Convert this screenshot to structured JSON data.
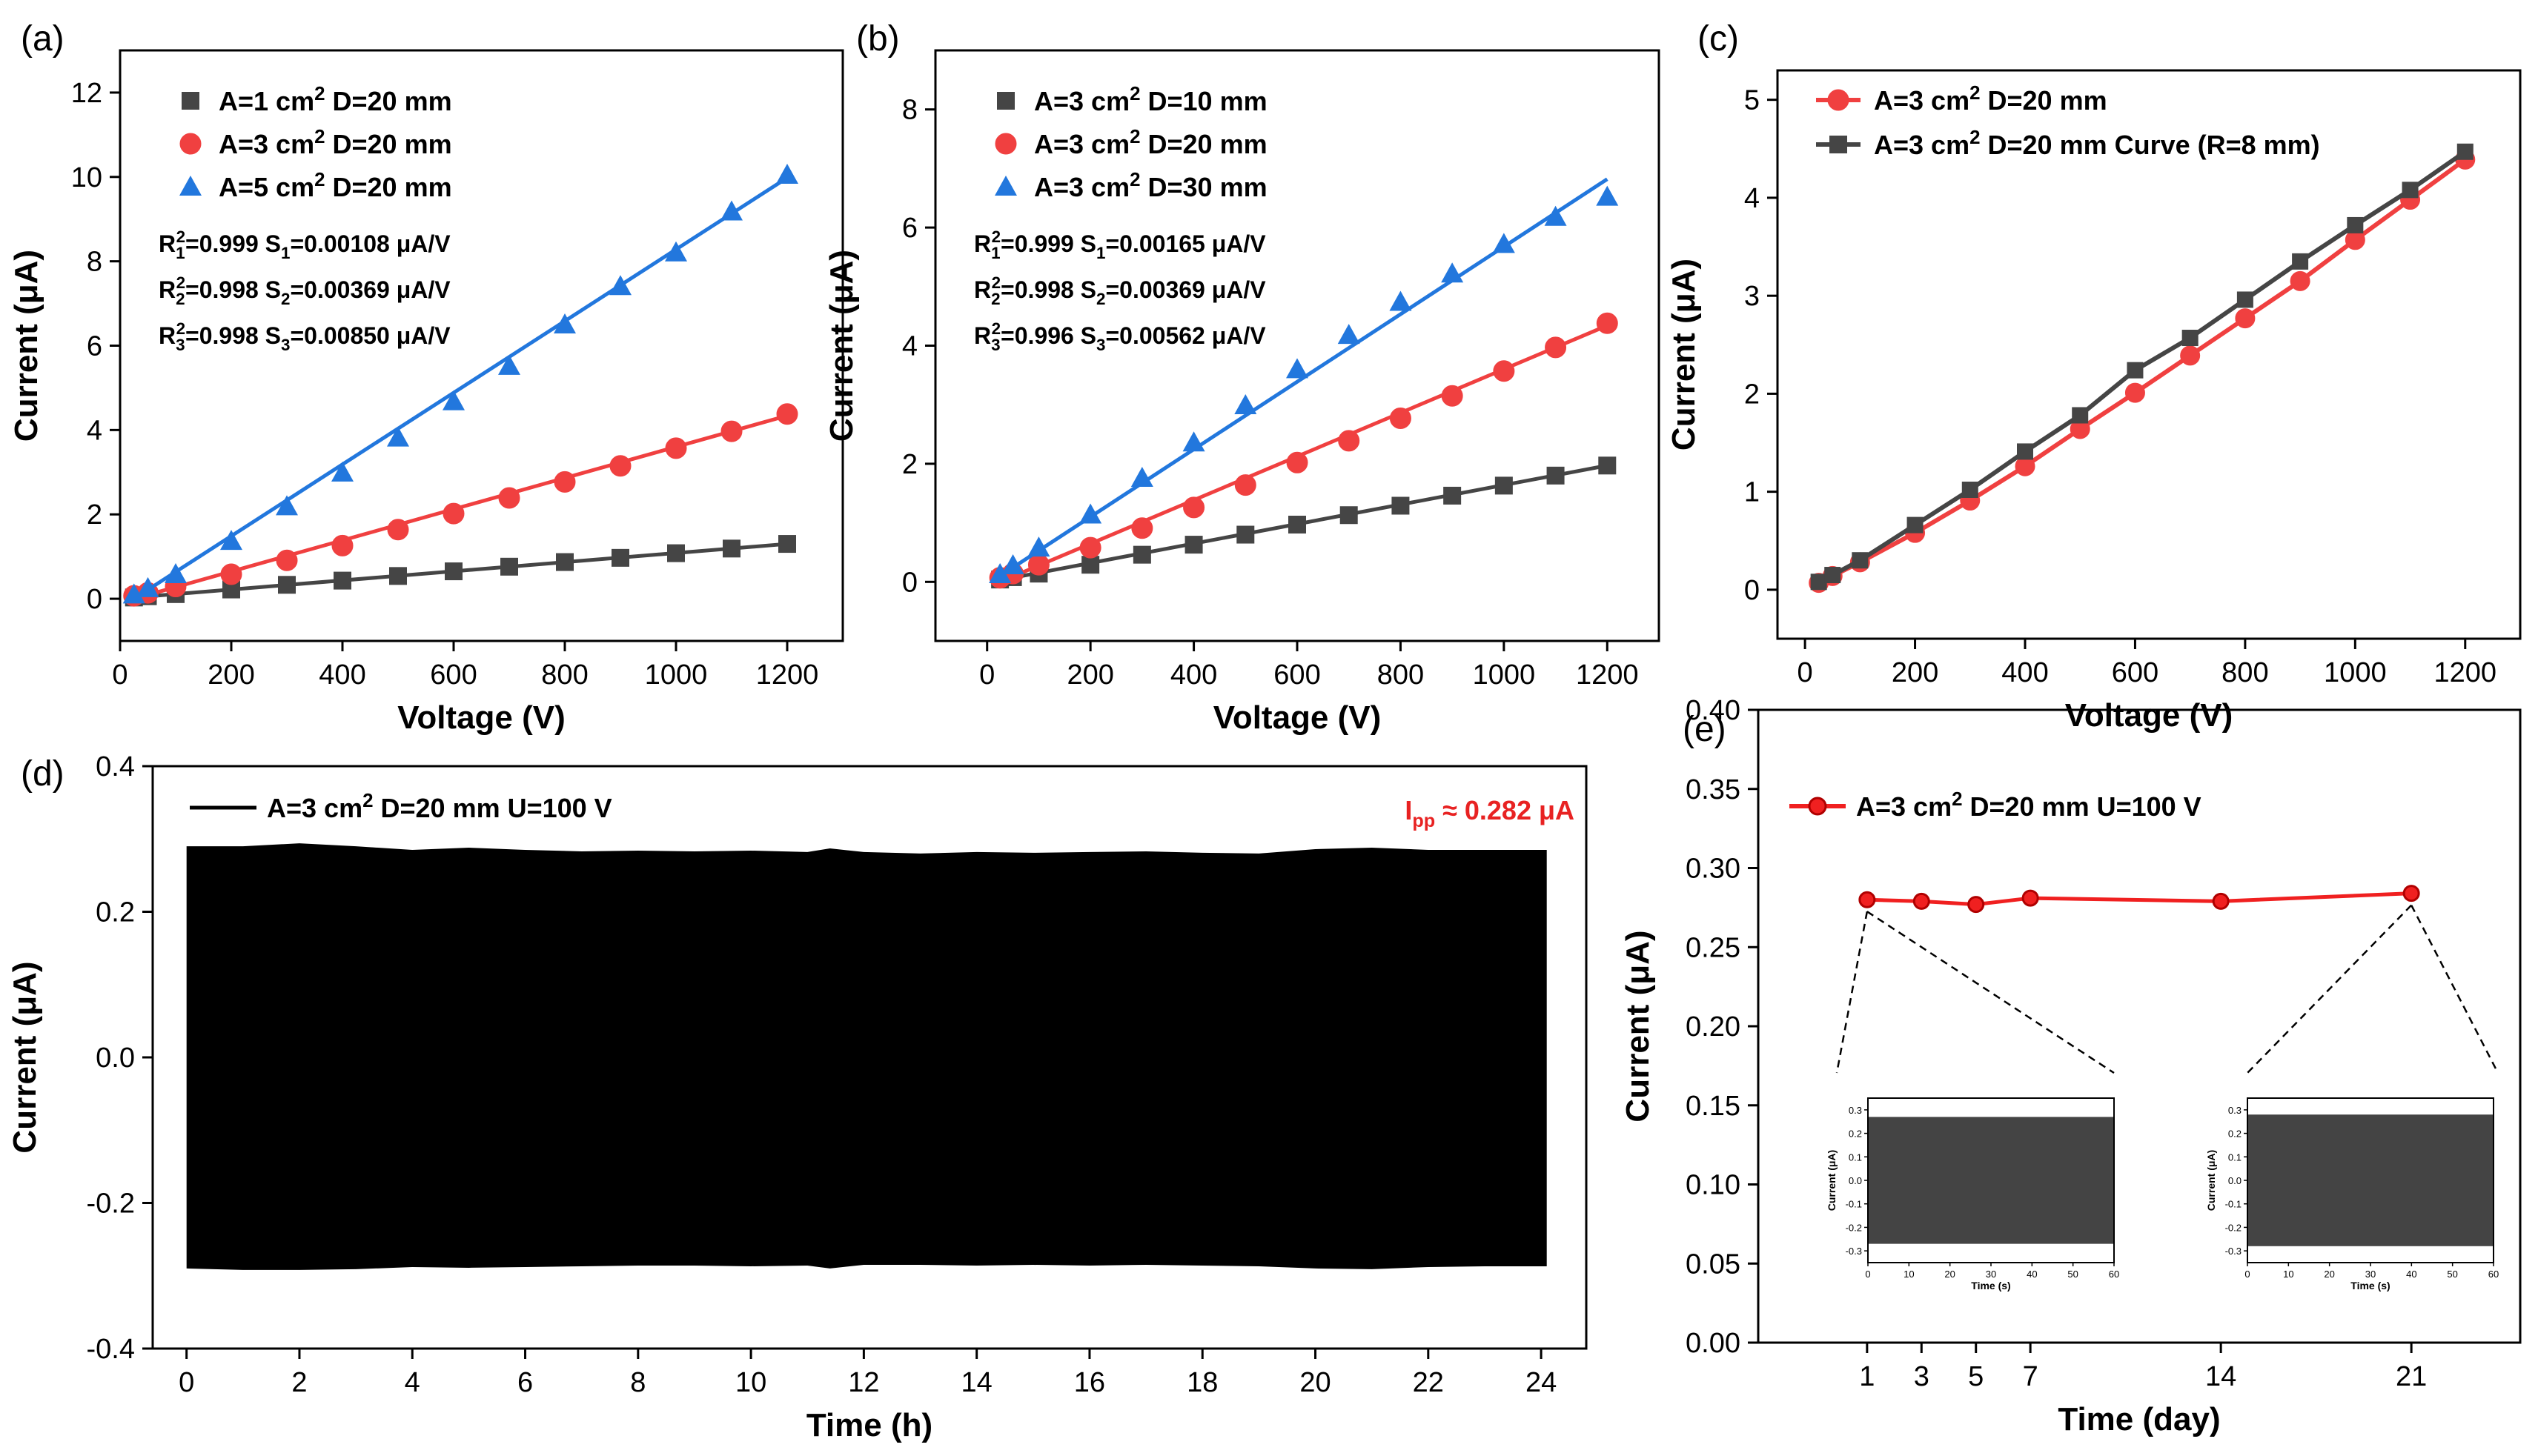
{
  "chart_data": [
    {
      "panel": "(a)",
      "type": "scatter",
      "xlabel": "Voltage (V)",
      "ylabel": "Current (μA)",
      "xlim": [
        0,
        1300
      ],
      "ylim": [
        -1,
        13
      ],
      "xticks": [
        0,
        200,
        400,
        600,
        800,
        1000,
        1200
      ],
      "yticks": [
        0,
        2,
        4,
        6,
        8,
        10,
        12
      ],
      "legend_position": "top-left",
      "series": [
        {
          "name": "A=1 cm² D=20 mm",
          "marker": "square",
          "color": "#454545",
          "x": [
            25,
            50,
            100,
            200,
            300,
            400,
            500,
            600,
            700,
            800,
            900,
            1000,
            1100,
            1200
          ],
          "y": [
            0.03,
            0.06,
            0.11,
            0.22,
            0.33,
            0.43,
            0.54,
            0.65,
            0.76,
            0.87,
            0.97,
            1.08,
            1.19,
            1.3
          ],
          "fit": [
            [
              25,
              0.03
            ],
            [
              1200,
              1.3
            ]
          ]
        },
        {
          "name": "A=3 cm² D=20 mm",
          "marker": "circle",
          "color": "#f04040",
          "x": [
            25,
            50,
            100,
            200,
            300,
            400,
            500,
            600,
            700,
            800,
            900,
            1000,
            1100,
            1200
          ],
          "y": [
            0.07,
            0.14,
            0.29,
            0.58,
            0.91,
            1.26,
            1.64,
            2.02,
            2.39,
            2.77,
            3.15,
            3.57,
            3.97,
            4.38
          ],
          "fit": [
            [
              25,
              0.0
            ],
            [
              1200,
              4.34
            ]
          ]
        },
        {
          "name": "A=5 cm² D=20 mm",
          "marker": "triangle",
          "color": "#2277dd",
          "x": [
            25,
            50,
            100,
            200,
            300,
            400,
            500,
            600,
            700,
            800,
            900,
            1000,
            1100,
            1200
          ],
          "y": [
            0.1,
            0.25,
            0.58,
            1.37,
            2.19,
            2.99,
            3.82,
            4.68,
            5.52,
            6.5,
            7.41,
            8.21,
            9.18,
            10.05
          ],
          "fit": [
            [
              25,
              0.0
            ],
            [
              1200,
              9.98
            ]
          ]
        }
      ],
      "annotations": [
        {
          "base": "R",
          "sub": "1",
          "sup": "2",
          "text": "=0.999  ",
          "base2": "S",
          "sub2": "1",
          "text2": "=0.00108 μA/V"
        },
        {
          "base": "R",
          "sub": "2",
          "sup": "2",
          "text": "=0.998  ",
          "base2": "S",
          "sub2": "2",
          "text2": "=0.00369 μA/V"
        },
        {
          "base": "R",
          "sub": "3",
          "sup": "2",
          "text": "=0.998  ",
          "base2": "S",
          "sub2": "3",
          "text2": "=0.00850 μA/V"
        }
      ]
    },
    {
      "panel": "(b)",
      "type": "scatter",
      "xlabel": "Voltage (V)",
      "ylabel": "Current (μA)",
      "xlim": [
        -100,
        1300
      ],
      "ylim": [
        -1,
        9
      ],
      "xticks": [
        0,
        200,
        400,
        600,
        800,
        1000,
        1200
      ],
      "yticks": [
        0,
        2,
        4,
        6,
        8
      ],
      "legend_position": "top-left",
      "series": [
        {
          "name": "A=3 cm² D=10 mm",
          "marker": "square",
          "color": "#454545",
          "x": [
            25,
            50,
            100,
            200,
            300,
            400,
            500,
            600,
            700,
            800,
            900,
            1000,
            1100,
            1200
          ],
          "y": [
            0.04,
            0.08,
            0.14,
            0.29,
            0.46,
            0.63,
            0.8,
            0.97,
            1.13,
            1.29,
            1.46,
            1.63,
            1.8,
            1.97
          ],
          "fit": [
            [
              25,
              0.03
            ],
            [
              1200,
              1.97
            ]
          ]
        },
        {
          "name": "A=3 cm² D=20 mm",
          "marker": "circle",
          "color": "#f04040",
          "x": [
            25,
            50,
            100,
            200,
            300,
            400,
            500,
            600,
            700,
            800,
            900,
            1000,
            1100,
            1200
          ],
          "y": [
            0.07,
            0.14,
            0.29,
            0.58,
            0.91,
            1.26,
            1.64,
            2.02,
            2.39,
            2.77,
            3.15,
            3.57,
            3.97,
            4.38
          ],
          "fit": [
            [
              25,
              0.0
            ],
            [
              1200,
              4.34
            ]
          ]
        },
        {
          "name": "A=3 cm² D=30 mm",
          "marker": "triangle",
          "color": "#2277dd",
          "x": [
            25,
            50,
            100,
            200,
            300,
            400,
            500,
            600,
            700,
            800,
            900,
            1000,
            1100,
            1200
          ],
          "y": [
            0.13,
            0.28,
            0.58,
            1.14,
            1.76,
            2.36,
            2.99,
            3.6,
            4.18,
            4.74,
            5.22,
            5.72,
            6.18,
            6.52
          ],
          "fit": [
            [
              25,
              0.1
            ],
            [
              1200,
              6.82
            ]
          ]
        }
      ],
      "annotations": [
        {
          "base": "R",
          "sub": "1",
          "sup": "2",
          "text": "=0.999  ",
          "base2": "S",
          "sub2": "1",
          "text2": "=0.00165 μA/V"
        },
        {
          "base": "R",
          "sub": "2",
          "sup": "2",
          "text": "=0.998  ",
          "base2": "S",
          "sub2": "2",
          "text2": "=0.00369 μA/V"
        },
        {
          "base": "R",
          "sub": "3",
          "sup": "2",
          "text": "=0.996  ",
          "base2": "S",
          "sub2": "3",
          "text2": "=0.00562 μA/V"
        }
      ]
    },
    {
      "panel": "(c)",
      "type": "line",
      "xlabel": "Voltage (V)",
      "ylabel": "Current (μA)",
      "xlim": [
        -50,
        1300
      ],
      "ylim": [
        -0.5,
        5.3
      ],
      "xticks": [
        0,
        200,
        400,
        600,
        800,
        1000,
        1200
      ],
      "yticks": [
        0,
        1,
        2,
        3,
        4,
        5
      ],
      "legend_position": "top-left",
      "series": [
        {
          "name": "A=3 cm² D=20 mm",
          "marker": "circle",
          "color": "#f04040",
          "x": [
            25,
            50,
            100,
            200,
            300,
            400,
            500,
            600,
            700,
            800,
            900,
            1000,
            1100,
            1200
          ],
          "y": [
            0.07,
            0.14,
            0.28,
            0.58,
            0.91,
            1.26,
            1.64,
            2.01,
            2.39,
            2.77,
            3.15,
            3.57,
            3.98,
            4.39
          ]
        },
        {
          "name": "A=3 cm² D=20 mm Curve (R=8 mm)",
          "marker": "square",
          "color": "#454545",
          "x": [
            25,
            50,
            100,
            200,
            300,
            400,
            500,
            600,
            700,
            800,
            900,
            1000,
            1100,
            1200
          ],
          "y": [
            0.08,
            0.15,
            0.3,
            0.66,
            1.02,
            1.41,
            1.78,
            2.24,
            2.57,
            2.96,
            3.35,
            3.72,
            4.08,
            4.47
          ]
        }
      ]
    },
    {
      "panel": "(d)",
      "type": "area",
      "xlabel": "Time (h)",
      "ylabel": "Current (μA)",
      "xlim": [
        -0.6,
        24.8
      ],
      "ylim": [
        -0.4,
        0.4
      ],
      "xticks": [
        0,
        2,
        4,
        6,
        8,
        10,
        12,
        14,
        16,
        18,
        20,
        22,
        24
      ],
      "yticks": [
        -0.4,
        -0.2,
        0.0,
        0.2,
        0.4
      ],
      "legend_position": "top-left",
      "series": [
        {
          "name": "A=3 cm² D=20 mm U=100 V",
          "color": "#000000",
          "envelope_x": [
            0,
            1,
            2,
            3,
            4,
            5,
            6,
            7,
            8,
            9,
            10,
            11,
            11.4,
            12,
            13,
            14,
            15,
            16,
            17,
            18,
            19,
            20,
            21,
            22,
            23,
            24.1
          ],
          "upper": [
            0.29,
            0.29,
            0.294,
            0.29,
            0.285,
            0.288,
            0.285,
            0.283,
            0.284,
            0.283,
            0.284,
            0.282,
            0.287,
            0.282,
            0.28,
            0.282,
            0.281,
            0.282,
            0.283,
            0.281,
            0.28,
            0.286,
            0.288,
            0.285,
            0.285,
            0.285
          ],
          "lower": [
            -0.29,
            -0.292,
            -0.292,
            -0.291,
            -0.288,
            -0.289,
            -0.288,
            -0.287,
            -0.286,
            -0.286,
            -0.287,
            -0.286,
            -0.29,
            -0.285,
            -0.285,
            -0.286,
            -0.285,
            -0.286,
            -0.285,
            -0.286,
            -0.287,
            -0.29,
            -0.291,
            -0.288,
            -0.287,
            -0.287
          ]
        }
      ],
      "annotation": {
        "base": "I",
        "sub": "pp",
        "text": " ≈ 0.282 μA",
        "color": "#e82222"
      }
    },
    {
      "panel": "(e)",
      "type": "line",
      "xlabel": "Time (day)",
      "ylabel": "Current (μA)",
      "xlim": [
        -3,
        25
      ],
      "ylim": [
        0.0,
        0.4
      ],
      "xticks": [
        1,
        3,
        5,
        7,
        14,
        21
      ],
      "yticks": [
        0.0,
        0.05,
        0.1,
        0.15,
        0.2,
        0.25,
        0.3,
        0.35,
        0.4
      ],
      "legend_position": "top-left",
      "series": [
        {
          "name": "A=3 cm² D=20 mm U=100 V",
          "marker": "circle",
          "color": "#f02020",
          "x": [
            1,
            3,
            5,
            7,
            14,
            21
          ],
          "y": [
            0.28,
            0.279,
            0.277,
            0.281,
            0.279,
            0.284
          ]
        }
      ],
      "insets": [
        {
          "xlabel": "Time (s)",
          "ylabel": "Current (μA)",
          "xlim": [
            0,
            60
          ],
          "ylim": [
            -0.35,
            0.35
          ],
          "xticks": [
            0,
            10,
            20,
            30,
            40,
            50,
            60
          ],
          "yticks": [
            -0.3,
            -0.2,
            -0.1,
            0.0,
            0.1,
            0.2,
            0.3
          ],
          "upper": 0.27,
          "lower": -0.27,
          "color": "#444444"
        },
        {
          "xlabel": "Time (s)",
          "ylabel": "Current (μA)",
          "xlim": [
            0,
            60
          ],
          "ylim": [
            -0.35,
            0.35
          ],
          "xticks": [
            0,
            10,
            20,
            30,
            40,
            50,
            60
          ],
          "yticks": [
            -0.3,
            -0.2,
            -0.1,
            0.0,
            0.1,
            0.2,
            0.3
          ],
          "upper": 0.28,
          "lower": -0.28,
          "color": "#444444"
        }
      ]
    }
  ]
}
